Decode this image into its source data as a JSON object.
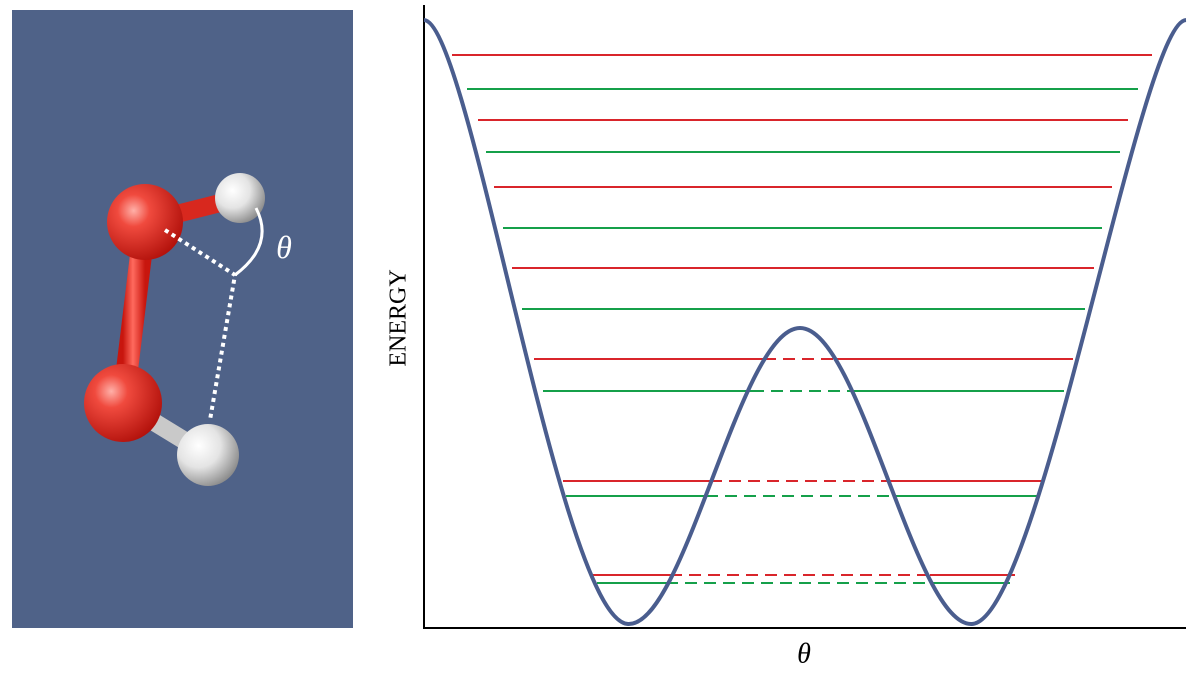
{
  "molecule": {
    "angle_label": "θ"
  },
  "plot": {
    "y_label": "ENERGY",
    "x_label": "θ"
  }
}
